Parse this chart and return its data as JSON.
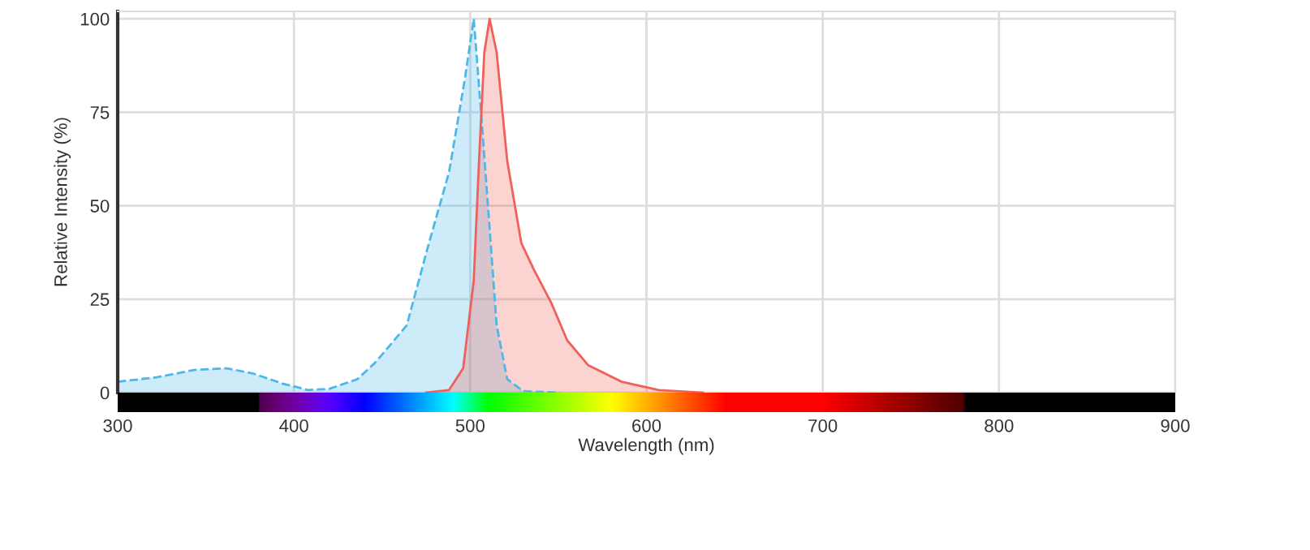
{
  "chart_data": {
    "type": "area",
    "xlabel": "Wavelength (nm)",
    "ylabel": "Relative Intensity (%)",
    "xlim": [
      300,
      900
    ],
    "xticks": [
      300,
      400,
      500,
      600,
      700,
      800,
      900
    ],
    "ylim": [
      0,
      102
    ],
    "yticks": [
      0,
      25,
      50,
      75,
      100
    ],
    "grid": true,
    "legend": false,
    "series": [
      {
        "color": "#4cb8ea",
        "line_style": "dashed",
        "x": [
          300,
          322,
          344,
          362,
          377,
          393,
          408,
          420,
          436,
          446,
          454,
          464,
          476,
          488,
          497,
          502,
          506,
          511,
          515,
          521,
          530,
          551
        ],
        "values": [
          2.9,
          4.1,
          6.1,
          6.5,
          5.1,
          2.5,
          0.7,
          1,
          3.6,
          8,
          12.4,
          18,
          39,
          59,
          84,
          100,
          76,
          44,
          18,
          3.6,
          0.4,
          0
        ]
      },
      {
        "color": "#f0605a",
        "line_style": "solid",
        "x": [
          475,
          488,
          496,
          502,
          505,
          508,
          511,
          515,
          521,
          529,
          536,
          546,
          555,
          567,
          586,
          607,
          632
        ],
        "values": [
          0,
          0.7,
          6.5,
          30,
          62,
          91,
          100,
          91,
          62,
          40,
          33,
          24,
          14,
          7.3,
          2.9,
          0.7,
          0
        ]
      }
    ]
  }
}
